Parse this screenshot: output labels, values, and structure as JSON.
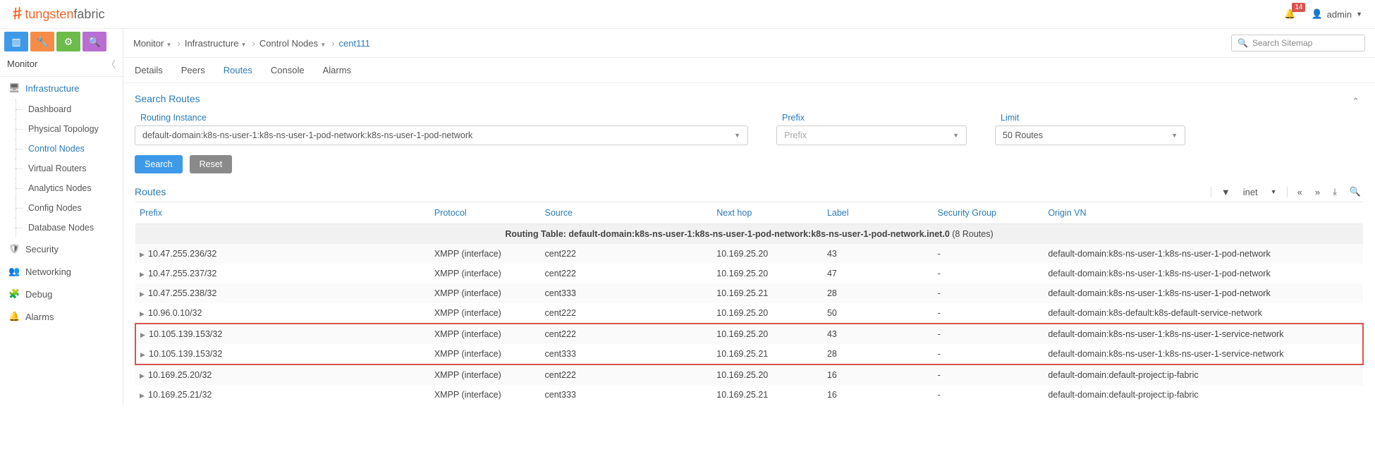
{
  "brand": {
    "t1": "tungsten",
    "t2": "fabric"
  },
  "topbar": {
    "notif_count": "14",
    "username": "admin"
  },
  "section_title": "Monitor",
  "sidebar": {
    "groups": [
      {
        "icon": "🖥",
        "label": "Infrastructure",
        "active": true,
        "children": [
          {
            "label": "Dashboard"
          },
          {
            "label": "Physical Topology"
          },
          {
            "label": "Control Nodes",
            "active": true
          },
          {
            "label": "Virtual Routers"
          },
          {
            "label": "Analytics Nodes"
          },
          {
            "label": "Config Nodes"
          },
          {
            "label": "Database Nodes"
          }
        ]
      },
      {
        "icon": "🛡",
        "label": "Security"
      },
      {
        "icon": "👥",
        "label": "Networking"
      },
      {
        "icon": "🧩",
        "label": "Debug"
      },
      {
        "icon": "🔔",
        "label": "Alarms"
      }
    ]
  },
  "breadcrumb": [
    "Monitor",
    "Infrastructure",
    "Control Nodes",
    "cent111"
  ],
  "sitemap_placeholder": "Search Sitemap",
  "subtabs": [
    "Details",
    "Peers",
    "Routes",
    "Console",
    "Alarms"
  ],
  "active_subtab": 2,
  "search_routes": {
    "title": "Search Routes",
    "routing_instance_label": "Routing Instance",
    "routing_instance_value": "default-domain:k8s-ns-user-1:k8s-ns-user-1-pod-network:k8s-ns-user-1-pod-network",
    "prefix_label": "Prefix",
    "prefix_placeholder": "Prefix",
    "limit_label": "Limit",
    "limit_value": "50 Routes",
    "search_btn": "Search",
    "reset_btn": "Reset"
  },
  "routes_section": {
    "title": "Routes",
    "type_filter": "inet",
    "columns": [
      "Prefix",
      "Protocol",
      "Source",
      "Next hop",
      "Label",
      "Security Group",
      "Origin VN"
    ],
    "col_widths": [
      "24%",
      "9%",
      "14%",
      "9%",
      "9%",
      "9%",
      "26%"
    ],
    "group_header_prefix": "Routing Table: default-domain:k8s-ns-user-1:k8s-ns-user-1-pod-network:k8s-ns-user-1-pod-network.inet.0",
    "group_header_count": " (8 Routes)",
    "rows": [
      {
        "prefix": "10.47.255.236/32",
        "protocol": "XMPP (interface)",
        "source": "cent222",
        "nexthop": "10.169.25.20",
        "label": "43",
        "sg": "-",
        "origin": "default-domain:k8s-ns-user-1:k8s-ns-user-1-pod-network"
      },
      {
        "prefix": "10.47.255.237/32",
        "protocol": "XMPP (interface)",
        "source": "cent222",
        "nexthop": "10.169.25.20",
        "label": "47",
        "sg": "-",
        "origin": "default-domain:k8s-ns-user-1:k8s-ns-user-1-pod-network"
      },
      {
        "prefix": "10.47.255.238/32",
        "protocol": "XMPP (interface)",
        "source": "cent333",
        "nexthop": "10.169.25.21",
        "label": "28",
        "sg": "-",
        "origin": "default-domain:k8s-ns-user-1:k8s-ns-user-1-pod-network"
      },
      {
        "prefix": "10.96.0.10/32",
        "protocol": "XMPP (interface)",
        "source": "cent222",
        "nexthop": "10.169.25.20",
        "label": "50",
        "sg": "-",
        "origin": "default-domain:k8s-default:k8s-default-service-network"
      },
      {
        "prefix": "10.105.139.153/32",
        "protocol": "XMPP (interface)",
        "source": "cent222",
        "nexthop": "10.169.25.20",
        "label": "43",
        "sg": "-",
        "origin": "default-domain:k8s-ns-user-1:k8s-ns-user-1-service-network",
        "hl": true
      },
      {
        "prefix": "10.105.139.153/32",
        "protocol": "XMPP (interface)",
        "source": "cent333",
        "nexthop": "10.169.25.21",
        "label": "28",
        "sg": "-",
        "origin": "default-domain:k8s-ns-user-1:k8s-ns-user-1-service-network",
        "hl": true
      },
      {
        "prefix": "10.169.25.20/32",
        "protocol": "XMPP (interface)",
        "source": "cent222",
        "nexthop": "10.169.25.20",
        "label": "16",
        "sg": "-",
        "origin": "default-domain:default-project:ip-fabric"
      },
      {
        "prefix": "10.169.25.21/32",
        "protocol": "XMPP (interface)",
        "source": "cent333",
        "nexthop": "10.169.25.21",
        "label": "16",
        "sg": "-",
        "origin": "default-domain:default-project:ip-fabric"
      }
    ]
  }
}
